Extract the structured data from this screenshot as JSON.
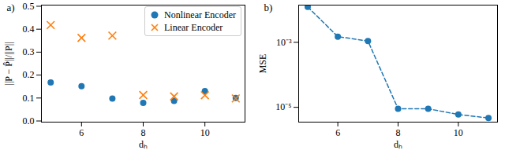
{
  "chart_data": [
    {
      "type": "scatter",
      "title": "a)",
      "x_label": "dₕ",
      "y_label": "||P − P̂||/||P||",
      "x": [
        5,
        6,
        7,
        8,
        9,
        10,
        11
      ],
      "series": [
        {
          "name": "Nonlinear Encoder",
          "color": "#1f77b4",
          "marker": "circle",
          "values": [
            0.168,
            0.152,
            0.098,
            0.079,
            0.087,
            0.13,
            0.1
          ]
        },
        {
          "name": "Linear Encoder",
          "color": "#ff7f0e",
          "marker": "x",
          "values": [
            0.418,
            0.362,
            0.372,
            0.113,
            0.107,
            0.112,
            0.098
          ]
        }
      ],
      "xlim": [
        4.7,
        11.3
      ],
      "xticks": [
        6,
        8,
        10
      ],
      "ylim": [
        -0.005,
        0.505
      ],
      "yticks": [
        {
          "value": 0,
          "label": "0.0"
        },
        0.1,
        0.2,
        0.3,
        0.4,
        0.5
      ],
      "legend": "upper right"
    },
    {
      "type": "line",
      "title": "b)",
      "x_label": "dₕ",
      "y_label": "MSE",
      "x": [
        5,
        6,
        7,
        8,
        9,
        10,
        11
      ],
      "values": [
        0.0123,
        0.0015,
        0.0011,
        9e-06,
        9e-06,
        6e-06,
        4.7e-06
      ],
      "color": "#1f77b4",
      "marker": "circle",
      "line_style": "dashed",
      "log": "y",
      "xlim": [
        4.7,
        11.3
      ],
      "xticks": [
        6,
        8,
        10
      ],
      "ylim": [
        3.5e-06,
        0.014
      ],
      "yticks": [
        {
          "value": 0.001,
          "label": "10⁻³"
        },
        {
          "value": 1e-05,
          "label": "10⁻⁵"
        }
      ]
    }
  ]
}
